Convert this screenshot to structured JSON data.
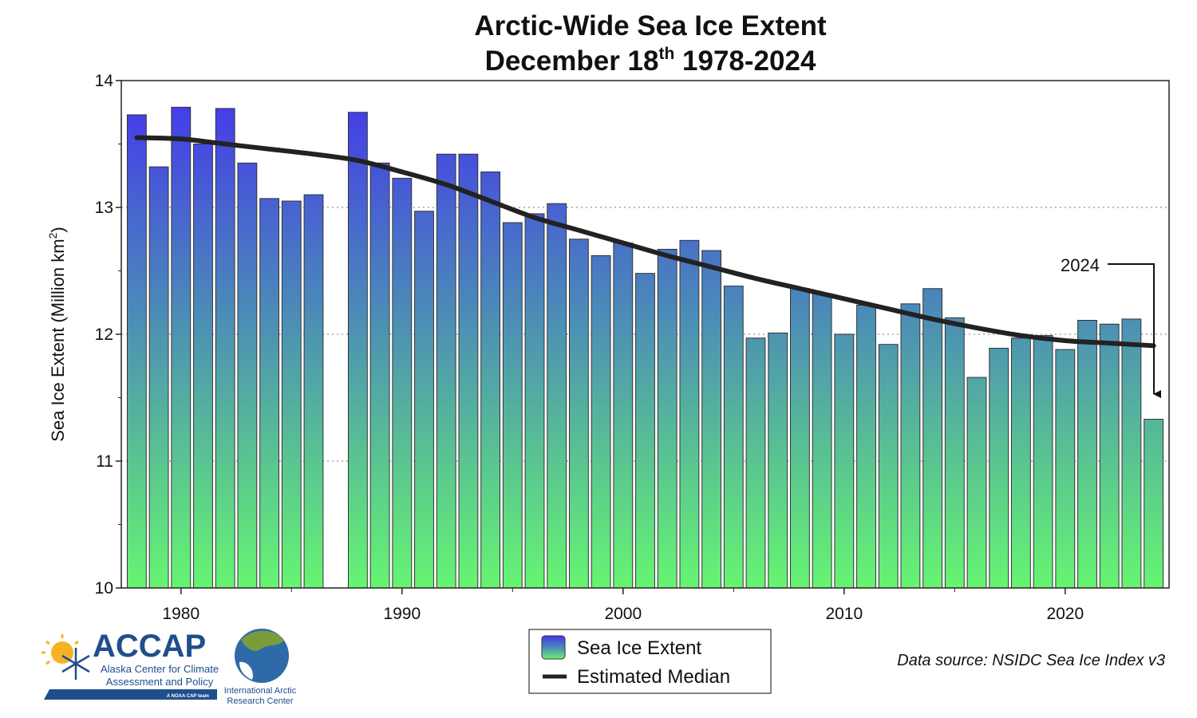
{
  "chart_data": {
    "type": "bar",
    "title": "Arctic-Wide Sea Ice Extent",
    "subtitle_prefix": "December 18",
    "subtitle_sup": "th",
    "subtitle_suffix": " 1978-2024",
    "ylabel_main": "Sea Ice Extent (Million km",
    "ylabel_sup": "2",
    "ylabel_close": ")",
    "xlabel": "",
    "ylim": [
      10,
      14
    ],
    "xlim": [
      1977.3,
      2024.7
    ],
    "yticks": [
      10,
      11,
      12,
      13,
      14
    ],
    "ytick_labels": [
      "10",
      "11",
      "12",
      "13",
      "14"
    ],
    "xticks": [
      1980,
      1990,
      2000,
      2010,
      2020
    ],
    "xtick_labels": [
      "1980",
      "1990",
      "2000",
      "2010",
      "2020"
    ],
    "gridlines": [
      11,
      12,
      13
    ],
    "grid": "dotted horizontal",
    "series": [
      {
        "name": "Sea Ice Extent",
        "years": [
          1978,
          1979,
          1980,
          1981,
          1982,
          1983,
          1984,
          1985,
          1986,
          1987,
          1988,
          1989,
          1990,
          1991,
          1992,
          1993,
          1994,
          1995,
          1996,
          1997,
          1998,
          1999,
          2000,
          2001,
          2002,
          2003,
          2004,
          2005,
          2006,
          2007,
          2008,
          2009,
          2010,
          2011,
          2012,
          2013,
          2014,
          2015,
          2016,
          2017,
          2018,
          2019,
          2020,
          2021,
          2022,
          2023,
          2024
        ],
        "values": [
          13.73,
          13.32,
          13.79,
          13.5,
          13.78,
          13.35,
          13.07,
          13.05,
          13.1,
          null,
          13.75,
          13.35,
          13.23,
          12.97,
          13.42,
          13.42,
          13.28,
          12.88,
          12.95,
          13.03,
          12.75,
          12.62,
          12.72,
          12.48,
          12.67,
          12.74,
          12.66,
          12.38,
          11.97,
          12.01,
          12.36,
          12.32,
          12.0,
          12.23,
          11.92,
          12.24,
          12.36,
          12.13,
          11.66,
          11.89,
          11.97,
          11.99,
          11.88,
          12.11,
          12.08,
          12.12,
          11.33
        ]
      },
      {
        "name": "Estimated Median",
        "type": "line",
        "years": [
          1978,
          1980,
          1982,
          1984,
          1986,
          1988,
          1990,
          1992,
          1994,
          1996,
          1998,
          2000,
          2002,
          2004,
          2006,
          2008,
          2010,
          2012,
          2014,
          2016,
          2018,
          2020,
          2022,
          2024
        ],
        "values": [
          13.55,
          13.54,
          13.5,
          13.46,
          13.42,
          13.37,
          13.28,
          13.18,
          13.05,
          12.92,
          12.82,
          12.72,
          12.62,
          12.53,
          12.44,
          12.36,
          12.28,
          12.2,
          12.12,
          12.05,
          11.99,
          11.95,
          11.93,
          11.91
        ]
      }
    ],
    "annotations": [
      {
        "text": "2024",
        "target_year": 2024
      }
    ],
    "legend": {
      "placement": "bottom-center",
      "entries": [
        "Sea Ice Extent",
        "Estimated Median"
      ]
    },
    "source": "Data source: NSIDC Sea Ice Index v3"
  },
  "colors": {
    "bar_top": "#4433ee",
    "bar_mid": "#4b8ab8",
    "bar_bottom": "#66f571",
    "median_line": "#222222",
    "grid": "#bbbbbb",
    "logo_blue": "#1f4e8c",
    "logo_sun": "#f5b324"
  },
  "logos": {
    "accap_name": "ACCAP",
    "accap_line1": "Alaska Center for Climate",
    "accap_line2": "Assessment and Policy",
    "accap_tag": "A NOAA CAP team",
    "iarc_line1": "International Arctic",
    "iarc_line2": "Research Center"
  }
}
